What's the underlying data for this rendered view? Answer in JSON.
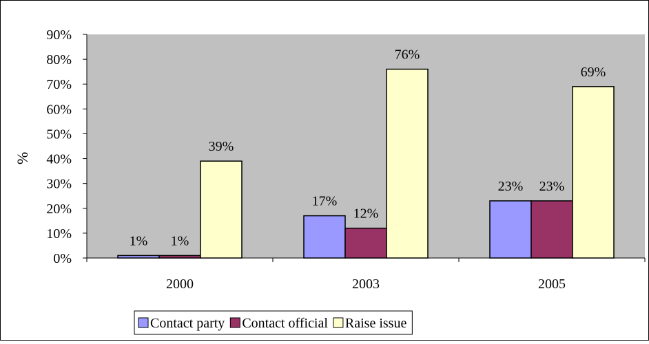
{
  "chart_data": {
    "type": "bar",
    "categories": [
      "2000",
      "2003",
      "2005"
    ],
    "series": [
      {
        "name": "Contact party",
        "values": [
          1,
          17,
          23
        ],
        "labels": [
          "1%",
          "17%",
          "23%"
        ],
        "color": "#9999ff"
      },
      {
        "name": "Contact official",
        "values": [
          1,
          12,
          23
        ],
        "labels": [
          "1%",
          "12%",
          "23%"
        ],
        "color": "#993366"
      },
      {
        "name": "Raise issue",
        "values": [
          39,
          76,
          69
        ],
        "labels": [
          "39%",
          "76%",
          "69%"
        ],
        "color": "#ffffcc"
      }
    ],
    "ylabel": "%",
    "ylim": [
      0,
      90
    ],
    "yticks": [
      "0%",
      "10%",
      "20%",
      "30%",
      "40%",
      "50%",
      "60%",
      "70%",
      "80%",
      "90%"
    ],
    "plot_background": "#c0c0c0",
    "grid": false,
    "legend_position": "bottom"
  }
}
